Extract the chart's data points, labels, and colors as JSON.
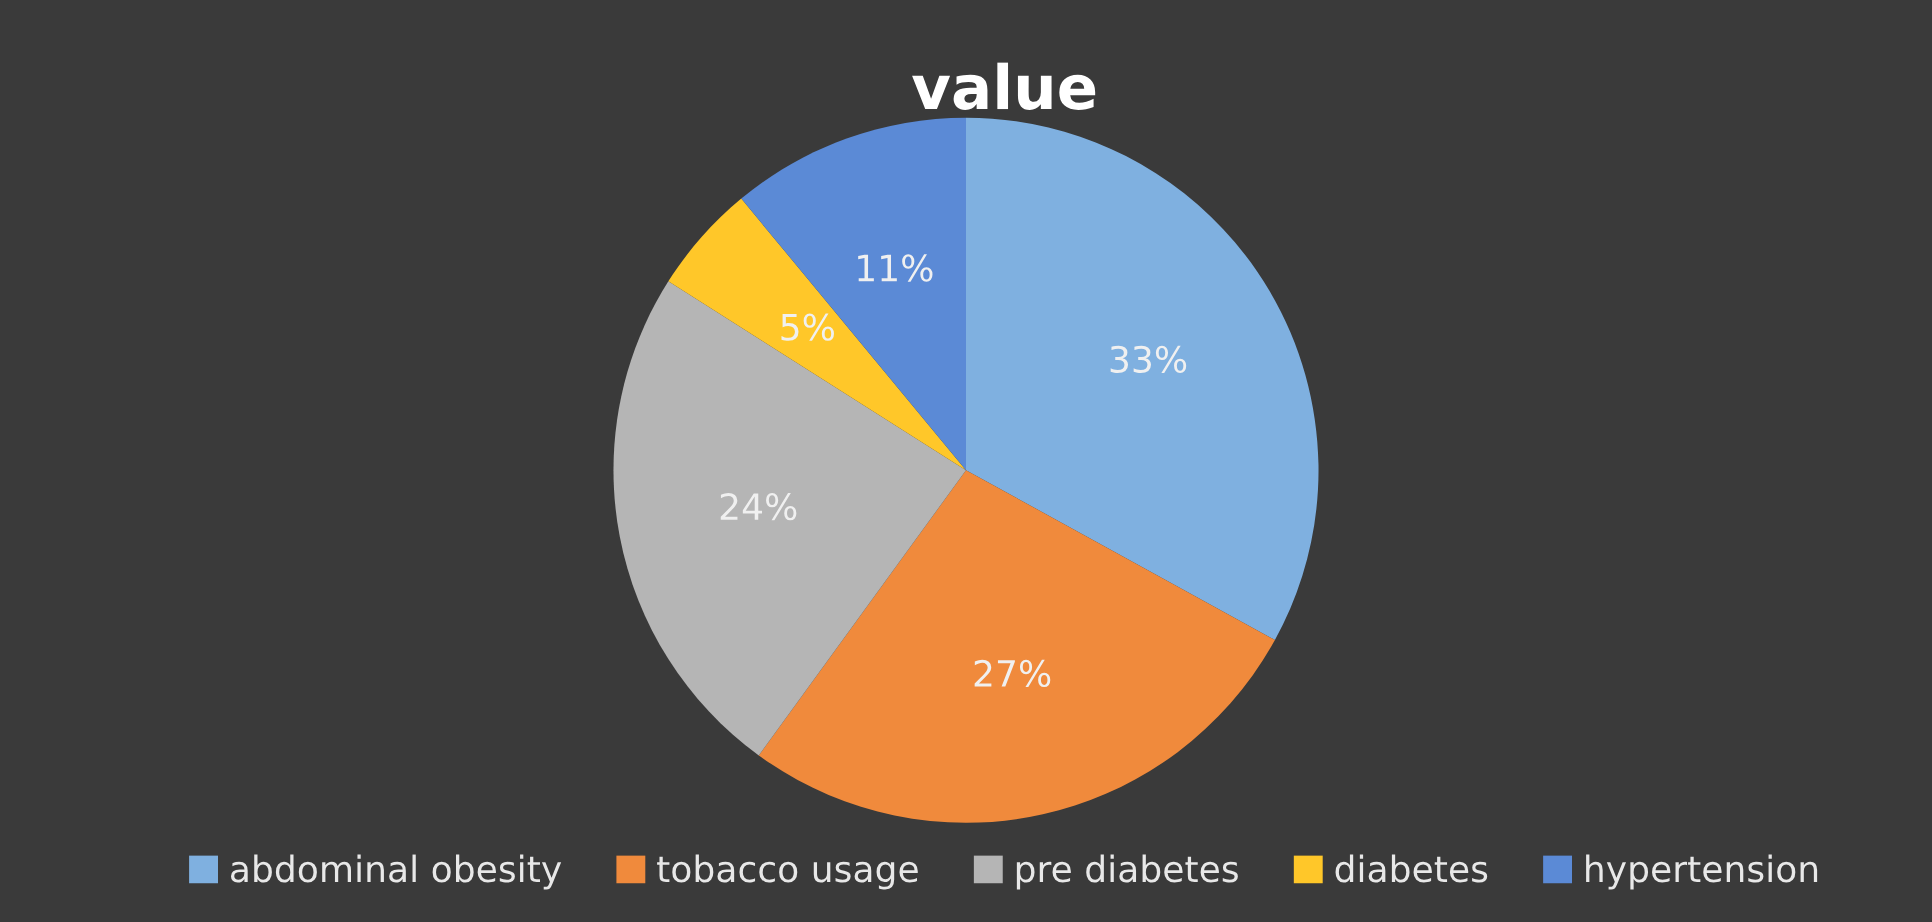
{
  "chart_data": {
    "type": "pie",
    "title": "value",
    "categories": [
      "abdominal obesity",
      "tobacco usage",
      "pre diabetes",
      "diabetes",
      "hypertension"
    ],
    "values": [
      33,
      27,
      24,
      5,
      11
    ],
    "colors": [
      "#7fb0e0",
      "#f08a3c",
      "#b5b5b5",
      "#ffc729",
      "#5b8ad6"
    ],
    "value_labels": [
      "33%",
      "27%",
      "24%",
      "5%",
      "11%"
    ],
    "legend": "bottom"
  }
}
